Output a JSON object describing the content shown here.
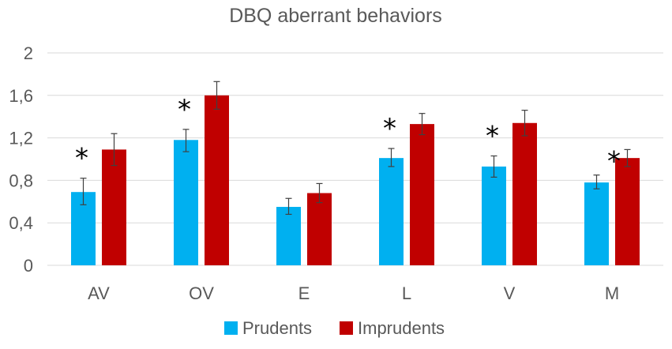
{
  "chart_data": {
    "type": "bar",
    "title": "DBQ aberrant behaviors",
    "categories": [
      "AV",
      "OV",
      "E",
      "L",
      "V",
      "M"
    ],
    "ylim": [
      0,
      2
    ],
    "yticks": [
      0,
      0.4,
      0.8,
      1.2,
      1.6,
      2
    ],
    "ytick_labels": [
      "0",
      "0,4",
      "0,8",
      "1,2",
      "1,6",
      "2"
    ],
    "grid": true,
    "legend_position": "bottom",
    "series": [
      {
        "name": "Prudents",
        "color": "#00b0f0",
        "values": [
          0.69,
          1.18,
          0.55,
          1.01,
          0.93,
          0.78
        ],
        "err_low": [
          0.57,
          1.07,
          0.48,
          0.93,
          0.83,
          0.72
        ],
        "err_high": [
          0.82,
          1.28,
          0.63,
          1.1,
          1.03,
          0.85
        ]
      },
      {
        "name": "Imprudents",
        "color": "#c00000",
        "values": [
          1.09,
          1.6,
          0.68,
          1.33,
          1.34,
          1.01
        ],
        "err_low": [
          0.94,
          1.47,
          0.59,
          1.23,
          1.22,
          0.93
        ],
        "err_high": [
          1.24,
          1.73,
          0.77,
          1.43,
          1.46,
          1.09
        ]
      }
    ],
    "annotations": {
      "significance_symbol": "*",
      "significant_categories": [
        "AV",
        "OV",
        "L",
        "V",
        "M"
      ]
    }
  }
}
